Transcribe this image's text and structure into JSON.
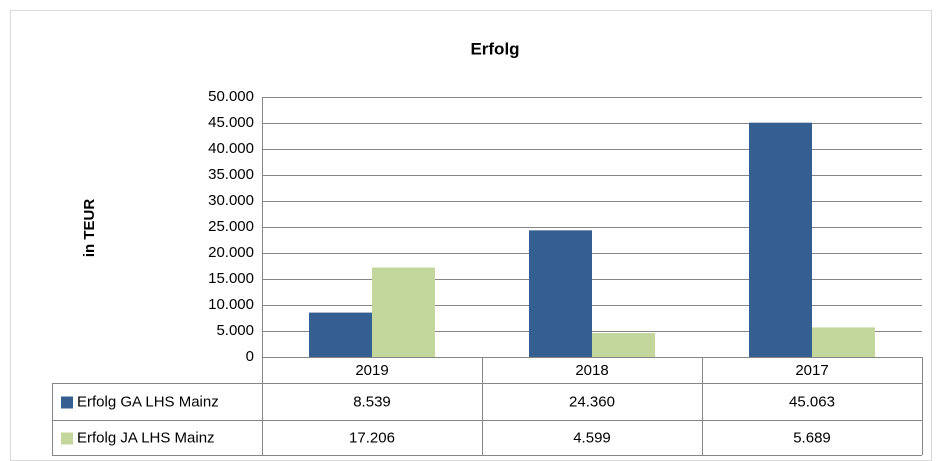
{
  "chart_data": {
    "type": "bar",
    "title": "Erfolg",
    "y_label": "in TEUR",
    "categories": [
      "2019",
      "2018",
      "2017"
    ],
    "series": [
      {
        "name": "Erfolg GA LHS Mainz",
        "color": "#355f91",
        "values": [
          8539,
          24360,
          45063
        ],
        "value_labels": [
          "8.539",
          "24.360",
          "45.063"
        ]
      },
      {
        "name": "Erfolg JA LHS Mainz",
        "color": "#c3d69b",
        "values": [
          17206,
          4599,
          5689
        ],
        "value_labels": [
          "17.206",
          "4.599",
          "5.689"
        ]
      }
    ],
    "ylim": [
      0,
      50000
    ],
    "yticks": [
      0,
      {
        "value": 5000,
        "label": "5.000"
      },
      {
        "value": 10000,
        "label": "10.000"
      },
      {
        "value": 15000,
        "label": "15.000"
      },
      {
        "value": 20000,
        "label": "20.000"
      },
      {
        "value": 25000,
        "label": "25.000"
      },
      {
        "value": 30000,
        "label": "30.000"
      },
      {
        "value": 35000,
        "label": "35.000"
      },
      {
        "value": 40000,
        "label": "40.000"
      },
      {
        "value": 45000,
        "label": "45.000"
      },
      {
        "value": 50000,
        "label": "50.000"
      }
    ],
    "grid": true
  }
}
